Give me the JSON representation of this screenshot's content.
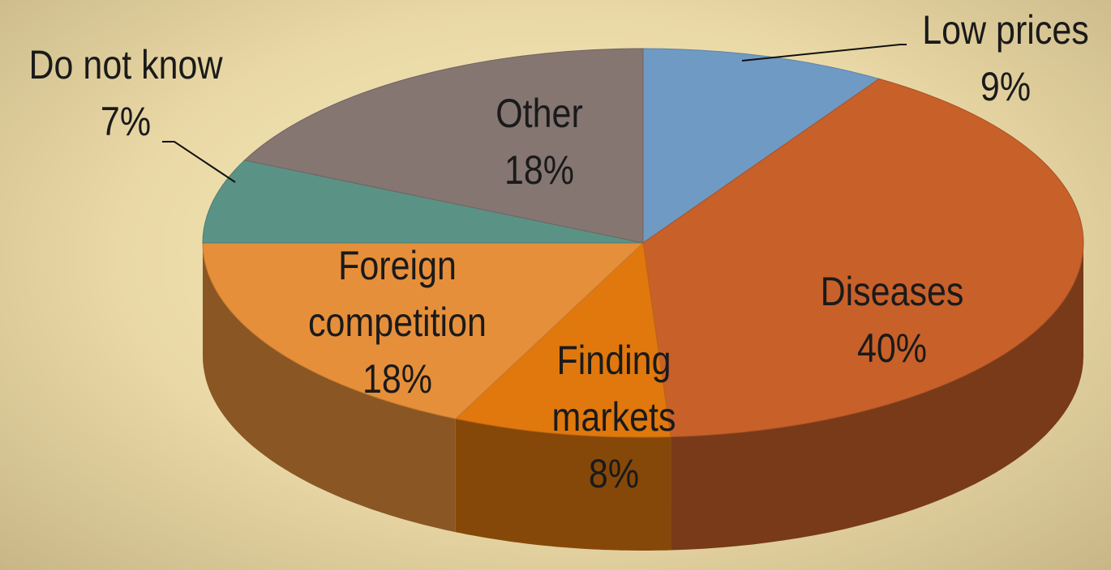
{
  "chart_data": {
    "type": "pie",
    "categories": [
      "Low prices",
      "Diseases",
      "Finding markets",
      "Foreign competition",
      "Do not know",
      "Other"
    ],
    "values": [
      9,
      40,
      8,
      18,
      7,
      18
    ],
    "value_labels": [
      "9%",
      "40%",
      "8%",
      "18%",
      "7%",
      "18%"
    ],
    "colors": [
      "#6f9ac4",
      "#c8602a",
      "#e0780e",
      "#e68f3a",
      "#5a9386",
      "#857672"
    ]
  }
}
